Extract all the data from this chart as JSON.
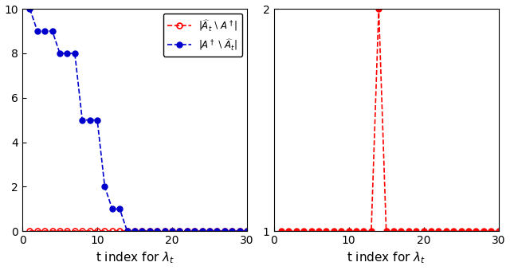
{
  "left_t": [
    1,
    2,
    3,
    4,
    5,
    6,
    7,
    8,
    9,
    10,
    11,
    12,
    13,
    14,
    15,
    16,
    17,
    18,
    19,
    20,
    21,
    22,
    23,
    24,
    25,
    26,
    27,
    28,
    29,
    30
  ],
  "blue_y": [
    10,
    9,
    9,
    9,
    8,
    8,
    8,
    5,
    5,
    5,
    2,
    1,
    1,
    0,
    0,
    0,
    0,
    0,
    0,
    0,
    0,
    0,
    0,
    0,
    0,
    0,
    0,
    0,
    0,
    0
  ],
  "red_left_y": [
    0,
    0,
    0,
    0,
    0,
    0,
    0,
    0,
    0,
    0,
    0,
    0,
    0,
    0,
    0,
    0,
    0,
    0,
    0,
    0,
    0,
    0,
    0,
    0,
    0,
    0,
    0,
    0,
    0,
    0
  ],
  "right_t": [
    1,
    2,
    3,
    4,
    5,
    6,
    7,
    8,
    9,
    10,
    11,
    12,
    13,
    14,
    15,
    16,
    17,
    18,
    19,
    20,
    21,
    22,
    23,
    24,
    25,
    26,
    27,
    28,
    29,
    30
  ],
  "red_right_y": [
    1,
    1,
    1,
    1,
    1,
    1,
    1,
    1,
    1,
    1,
    1,
    1,
    1,
    2,
    1,
    1,
    1,
    1,
    1,
    1,
    1,
    1,
    1,
    1,
    1,
    1,
    1,
    1,
    1,
    1
  ],
  "left_xlim": [
    0,
    30
  ],
  "left_ylim": [
    0,
    10
  ],
  "right_xlim": [
    0,
    30
  ],
  "right_ylim": [
    1,
    2
  ],
  "xlabel": "t index for $\\lambda_t$",
  "legend_label_red": "$|\\widehat{A}_t \\setminus A^\\dagger|$",
  "legend_label_blue": "$|A^\\dagger \\setminus \\widehat{A}_t|$",
  "red_color": "#ff0000",
  "blue_color": "#0000cc",
  "bg_color": "#ffffff",
  "left_yticks": [
    0,
    2,
    4,
    6,
    8,
    10
  ],
  "right_yticks": [
    1,
    2
  ],
  "xticks": [
    0,
    10,
    20,
    30
  ]
}
